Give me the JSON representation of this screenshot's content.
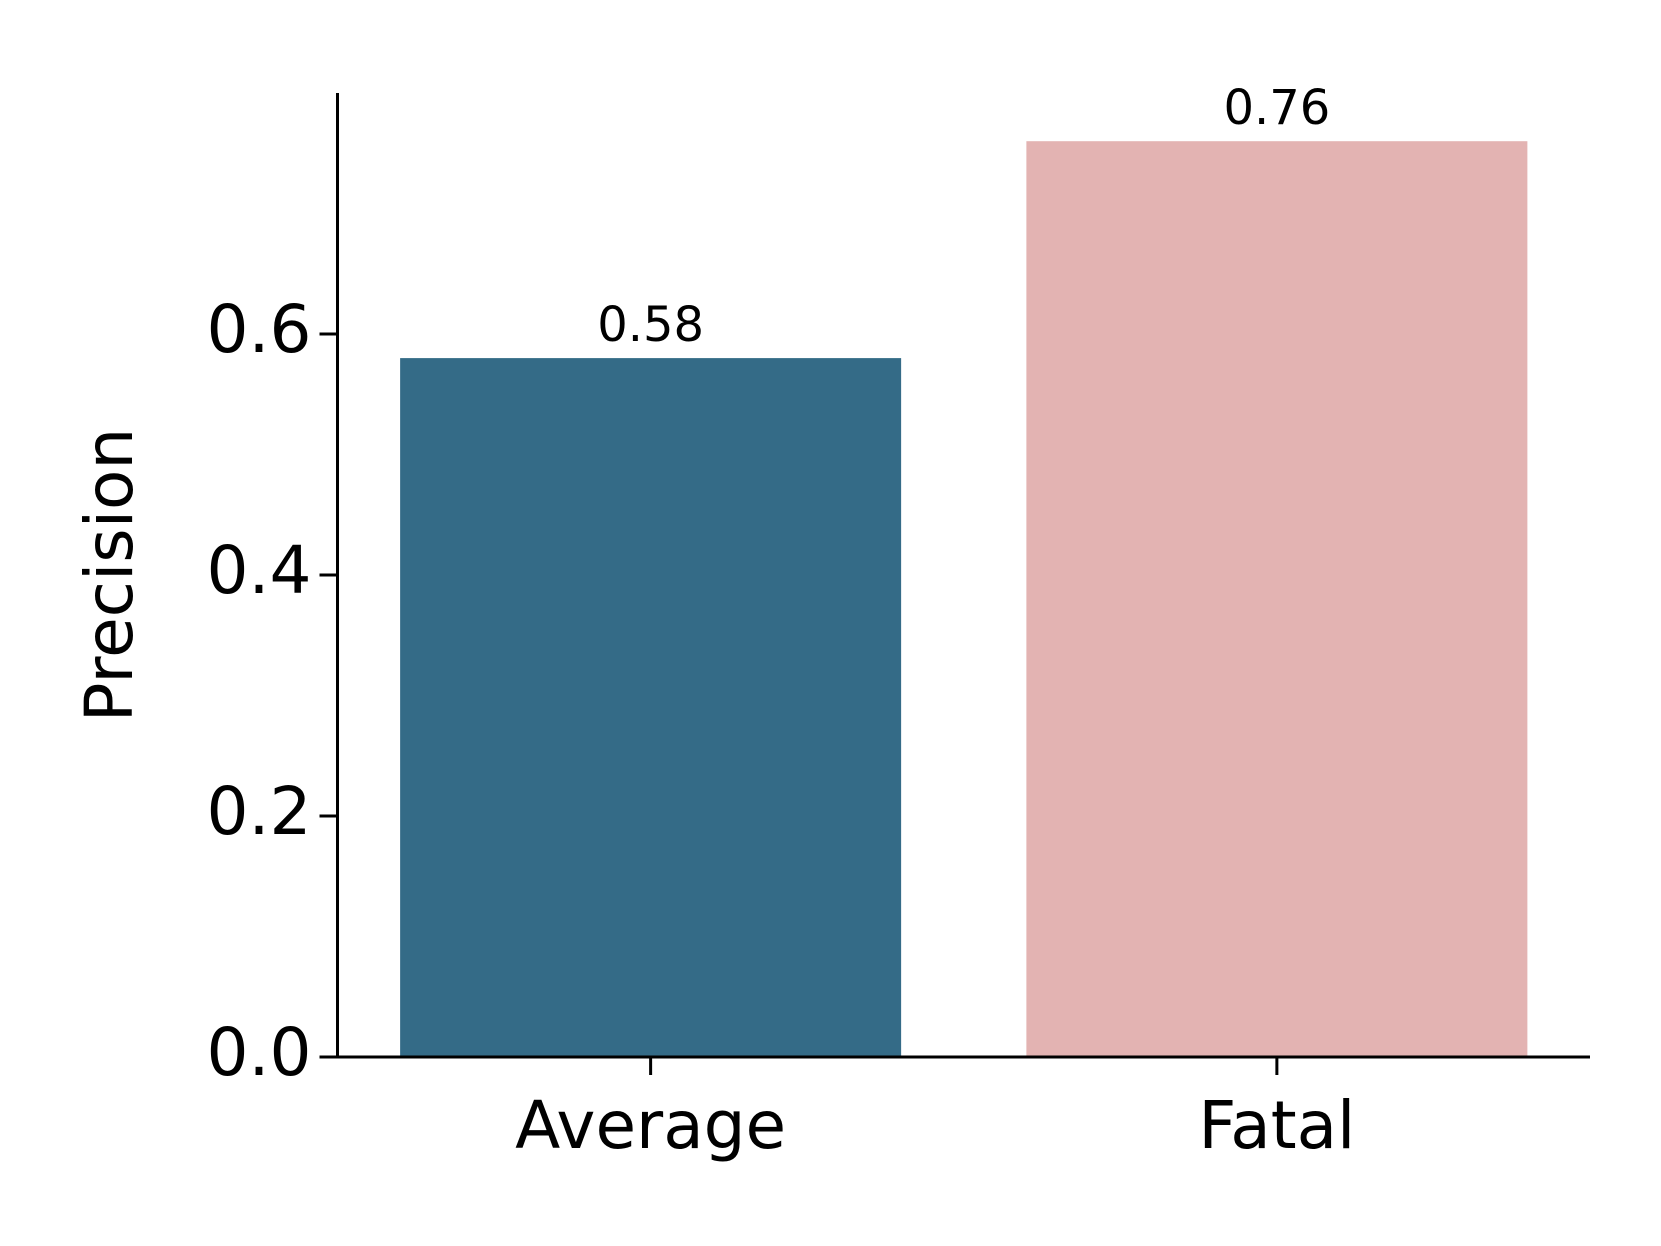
{
  "chart_data": {
    "type": "bar",
    "ylabel": "Precision",
    "categories": [
      "Average",
      "Fatal"
    ],
    "values": [
      0.58,
      0.76
    ],
    "colors": [
      "#346b87",
      "#e3b3b2"
    ],
    "ylim": [
      0,
      0.8
    ],
    "yticks": [
      {
        "value": 0,
        "label": "0.0"
      },
      0.2,
      0.4,
      0.6
    ],
    "grid": false
  }
}
